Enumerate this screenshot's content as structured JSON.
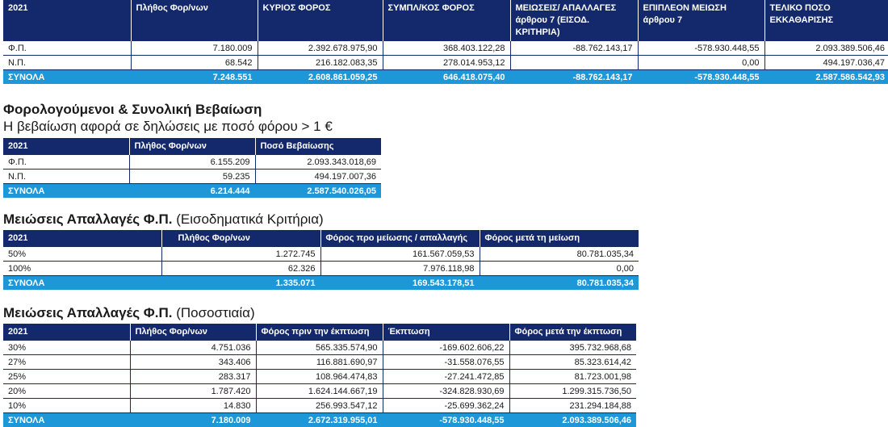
{
  "main_table": {
    "headers": [
      "2021",
      "Πλήθος Φορ/νων",
      "ΚΥΡΙΟΣ ΦΟΡΟΣ",
      "ΣΥΜΠΛ/ΚΟΣ ΦΟΡΟΣ",
      "ΜΕΙΩΣΕΙΣ/ ΑΠΑΛΛΑΓΕΣ άρθρου 7 (ΕΙΣΟΔ. ΚΡΙΤΗΡΙΑ)",
      "ΕΠΙΠΛΕΟΝ ΜΕΙΩΣΗ άρθρου 7",
      "ΤΕΛΙΚΟ ΠΟΣΟ ΕΚΚΑΘΑΡΙΣΗΣ"
    ],
    "rows": [
      [
        "Φ.Π.",
        "7.180.009",
        "2.392.678.975,90",
        "368.403.122,28",
        "-88.762.143,17",
        "-578.930.448,55",
        "2.093.389.506,46"
      ],
      [
        "Ν.Π.",
        "68.542",
        "216.182.083,35",
        "278.014.953,12",
        "",
        "0,00",
        "494.197.036,47"
      ]
    ],
    "total": [
      "ΣΥΝΟΛΑ",
      "7.248.551",
      "2.608.861.059,25",
      "646.418.075,40",
      "-88.762.143,17",
      "-578.930.448,55",
      "2.587.586.542,93"
    ]
  },
  "section_certificate": {
    "title": "Φορολογούμενοι & Συνολική Βεβαίωση",
    "subtitle": "Η βεβαίωση αφορά σε δηλώσεις με ποσό φόρου > 1 €",
    "headers": [
      "2021",
      "Πλήθος Φορ/νων",
      "Ποσό Βεβαίωσης"
    ],
    "rows": [
      [
        "Φ.Π.",
        "6.155.209",
        "2.093.343.018,69"
      ],
      [
        "Ν.Π.",
        "59.235",
        "494.197.007,36"
      ]
    ],
    "total": [
      "ΣΥΝΟΛΑ",
      "6.214.444",
      "2.587.540.026,05"
    ]
  },
  "section_income": {
    "title_bold": "Μειώσεις Απαλλαγές Φ.Π.",
    "title_normal": "(Εισοδηματικά Κριτήρια)",
    "headers": [
      "2021",
      "Πλήθος Φορ/νων",
      "Φόρος προ μείωσης / απαλλαγής",
      "Φόρος μετά τη μείωση"
    ],
    "rows": [
      [
        "50%",
        "1.272.745",
        "161.567.059,53",
        "80.781.035,34"
      ],
      [
        "100%",
        "62.326",
        "7.976.118,98",
        "0,00"
      ]
    ],
    "total": [
      "ΣΥΝΟΛΑ",
      "1.335.071",
      "169.543.178,51",
      "80.781.035,34"
    ]
  },
  "section_percent": {
    "title_bold": "Μειώσεις Απαλλαγές Φ.Π.",
    "title_normal": "(Ποσοστιαία)",
    "headers": [
      "2021",
      "Πλήθος Φορ/νων",
      "Φόρος πριν την έκπτωση",
      "Έκπτωση",
      "Φόρος μετά την έκπτωση"
    ],
    "rows": [
      [
        "30%",
        "4.751.036",
        "565.335.574,90",
        "-169.602.606,22",
        "395.732.968,68"
      ],
      [
        "27%",
        "343.406",
        "116.881.690,97",
        "-31.558.076,55",
        "85.323.614,42"
      ],
      [
        "25%",
        "283.317",
        "108.964.474,83",
        "-27.241.472,85",
        "81.723.001,98"
      ],
      [
        "20%",
        "1.787.420",
        "1.624.144.667,19",
        "-324.828.930,69",
        "1.299.315.736,50"
      ],
      [
        "10%",
        "14.830",
        "256.993.547,12",
        "-25.699.362,24",
        "231.294.184,88"
      ]
    ],
    "total": [
      "ΣΥΝΟΛΑ",
      "7.180.009",
      "2.672.319.955,01",
      "-578.930.448,55",
      "2.093.389.506,46"
    ]
  }
}
